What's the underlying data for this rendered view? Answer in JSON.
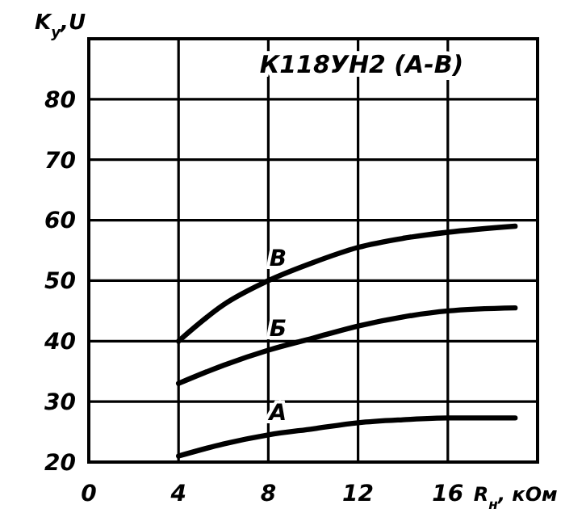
{
  "chart_data": {
    "type": "line",
    "title": "К118УН2 (А-В)",
    "xlabel": "R$_{н}$, кОм",
    "ylabel": "K$_{у}$,U",
    "x": [
      4,
      6,
      8,
      10,
      12,
      14,
      16,
      19
    ],
    "series": [
      {
        "name": "А",
        "color": "#000000",
        "values": [
          21,
          23,
          24.5,
          25.5,
          26.5,
          27,
          27.3,
          27.3
        ]
      },
      {
        "name": "Б",
        "color": "#000000",
        "values": [
          33,
          36,
          38.5,
          40.5,
          42.5,
          44,
          45,
          45.5
        ]
      },
      {
        "name": "В",
        "color": "#000000",
        "values": [
          40,
          46,
          50,
          53,
          55.5,
          57,
          58,
          59
        ]
      }
    ],
    "xlim": [
      0,
      20
    ],
    "xticks": [
      0,
      4,
      8,
      12,
      16
    ],
    "ylim": [
      20,
      90
    ],
    "yticks": [
      20,
      30,
      40,
      50,
      60,
      70,
      80
    ],
    "grid": true,
    "marker": "none",
    "line_style": "solid"
  }
}
